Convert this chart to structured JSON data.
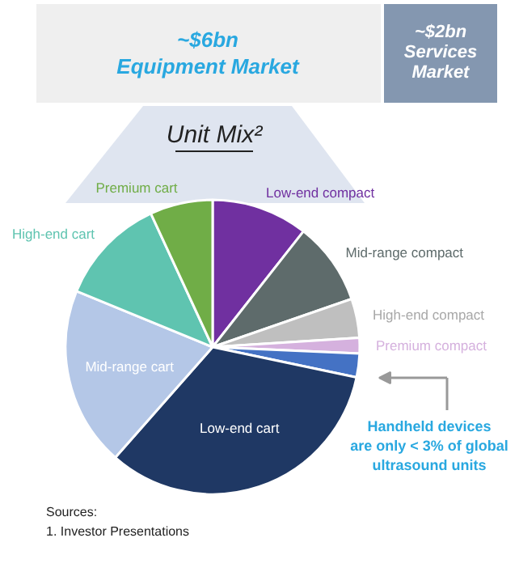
{
  "chart_data": {
    "type": "pie",
    "title": "Unit Mix²",
    "categories": [
      "Low-end compact",
      "Mid-range compact",
      "High-end compact",
      "Premium compact",
      null,
      "Low-end cart",
      "Mid-range cart",
      "High-end cart",
      "Premium cart"
    ],
    "values": [
      10.6,
      9.1,
      4.3,
      1.7,
      2.6,
      33.2,
      19.7,
      11.9,
      6.9
    ],
    "colors": [
      "#7030a0",
      "#5e6b6b",
      "#bfbfbf",
      "#d5b1de",
      "#4472c4",
      "#1f3864",
      "#b4c7e7",
      "#5fc4b0",
      "#70ad47"
    ],
    "annotations": [
      "~$6bn\nEquipment Market",
      "~$2bn\nServices\nMarket",
      "Handheld devices\nare only < 3% of global\nultrasound units",
      "Sources:\n1.    Investor Presentations"
    ]
  }
}
